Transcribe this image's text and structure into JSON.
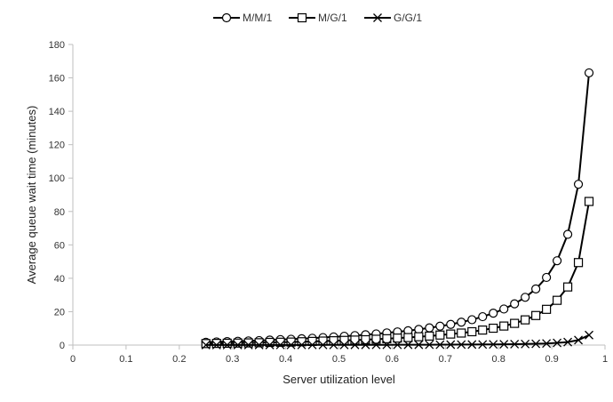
{
  "chart_data": {
    "type": "line",
    "title": "",
    "xlabel": "Server utilization level",
    "ylabel": "Average queue wait time (minutes)",
    "xlim": [
      0,
      1
    ],
    "ylim": [
      0,
      180
    ],
    "x_ticks": [
      0,
      0.1,
      0.2,
      0.3,
      0.4,
      0.5,
      0.6,
      0.7,
      0.8,
      0.9,
      1
    ],
    "x_tick_labels": [
      "0",
      "0.1",
      "0.2",
      "0.3",
      "0.4",
      "0.5",
      "0.6",
      "0.7",
      "0.8",
      "0.9",
      "1"
    ],
    "y_ticks": [
      0,
      20,
      40,
      60,
      80,
      100,
      120,
      140,
      160,
      180
    ],
    "y_tick_labels": [
      "0",
      "20",
      "40",
      "60",
      "80",
      "100",
      "120",
      "140",
      "160",
      "180"
    ],
    "grid": false,
    "legend_position": "top-center",
    "line_color": "#000000",
    "series": [
      {
        "name": "M/M/1",
        "marker": "circle",
        "x": [
          0.25,
          0.27,
          0.29,
          0.31,
          0.33,
          0.35,
          0.37,
          0.39,
          0.41,
          0.43,
          0.45,
          0.47,
          0.49,
          0.51,
          0.53,
          0.55,
          0.57,
          0.59,
          0.61,
          0.63,
          0.65,
          0.67,
          0.69,
          0.71,
          0.73,
          0.75,
          0.77,
          0.79,
          0.81,
          0.83,
          0.85,
          0.87,
          0.89,
          0.91,
          0.93,
          0.95,
          0.97
        ],
        "values": [
          1.7,
          1.9,
          2.1,
          2.3,
          2.5,
          2.7,
          3.0,
          3.3,
          3.5,
          3.8,
          4.1,
          4.5,
          4.9,
          5.3,
          5.7,
          6.2,
          6.7,
          7.3,
          7.9,
          8.6,
          9.4,
          10.3,
          11.3,
          12.4,
          13.7,
          15.2,
          17.0,
          19.1,
          21.6,
          24.7,
          28.6,
          33.6,
          40.5,
          50.5,
          66.3,
          96.3,
          163.0
        ]
      },
      {
        "name": "M/G/1",
        "marker": "square",
        "x": [
          0.25,
          0.27,
          0.29,
          0.31,
          0.33,
          0.35,
          0.37,
          0.39,
          0.41,
          0.43,
          0.45,
          0.47,
          0.49,
          0.51,
          0.53,
          0.55,
          0.57,
          0.59,
          0.61,
          0.63,
          0.65,
          0.67,
          0.69,
          0.71,
          0.73,
          0.75,
          0.77,
          0.79,
          0.81,
          0.83,
          0.85,
          0.87,
          0.89,
          0.91,
          0.93,
          0.95,
          0.97
        ],
        "values": [
          0.9,
          1.0,
          1.1,
          1.2,
          1.3,
          1.4,
          1.6,
          1.7,
          1.8,
          2.0,
          2.2,
          2.4,
          2.6,
          2.8,
          3.0,
          3.2,
          3.5,
          3.8,
          4.2,
          4.5,
          5.0,
          5.4,
          6.0,
          6.6,
          7.2,
          8.0,
          9.0,
          10.1,
          11.4,
          13.0,
          15.1,
          17.7,
          21.4,
          26.8,
          34.8,
          49.4,
          86.0
        ]
      },
      {
        "name": "G/G/1",
        "marker": "x",
        "x": [
          0.25,
          0.27,
          0.29,
          0.31,
          0.33,
          0.35,
          0.37,
          0.39,
          0.41,
          0.43,
          0.45,
          0.47,
          0.49,
          0.51,
          0.53,
          0.55,
          0.57,
          0.59,
          0.61,
          0.63,
          0.65,
          0.67,
          0.69,
          0.71,
          0.73,
          0.75,
          0.77,
          0.79,
          0.81,
          0.83,
          0.85,
          0.87,
          0.89,
          0.91,
          0.93,
          0.95,
          0.97
        ],
        "values": [
          0.05,
          0.05,
          0.05,
          0.06,
          0.06,
          0.07,
          0.07,
          0.08,
          0.08,
          0.09,
          0.1,
          0.1,
          0.11,
          0.12,
          0.13,
          0.14,
          0.15,
          0.16,
          0.17,
          0.19,
          0.2,
          0.22,
          0.25,
          0.27,
          0.3,
          0.33,
          0.37,
          0.42,
          0.48,
          0.55,
          0.64,
          0.77,
          0.95,
          1.3,
          1.8,
          3.0,
          6.0
        ]
      }
    ]
  }
}
